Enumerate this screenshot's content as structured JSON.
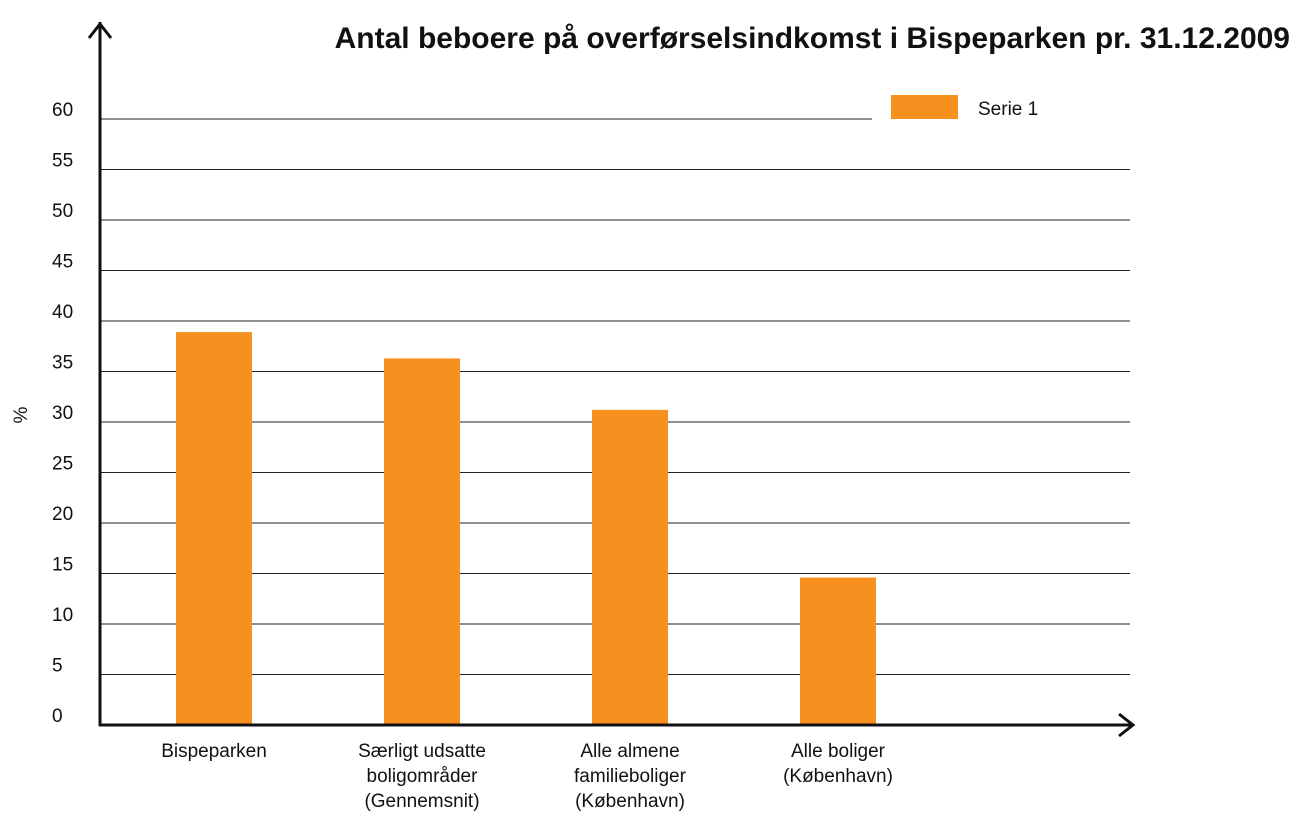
{
  "chart_data": {
    "type": "bar",
    "title": "Antal beboere på overførselsindkomst i Bispeparken pr. 31.12.2009",
    "y_label": "%",
    "categories": [
      "Bispeparken",
      "Særligt udsatte\nboligområder\n(Gennemsnit)",
      "Alle almene\nfamilieboliger\n(København)",
      "Alle boliger\n(København)"
    ],
    "series": [
      {
        "name": "Serie 1",
        "color": "#f7901e",
        "values": [
          38.9,
          36.3,
          31.2,
          14.6
        ]
      }
    ],
    "ylim": [
      0,
      60
    ],
    "yticks": [
      0,
      5,
      10,
      15,
      20,
      25,
      30,
      35,
      40,
      45,
      50,
      55,
      60
    ],
    "grid": true,
    "legend": "top-right"
  }
}
